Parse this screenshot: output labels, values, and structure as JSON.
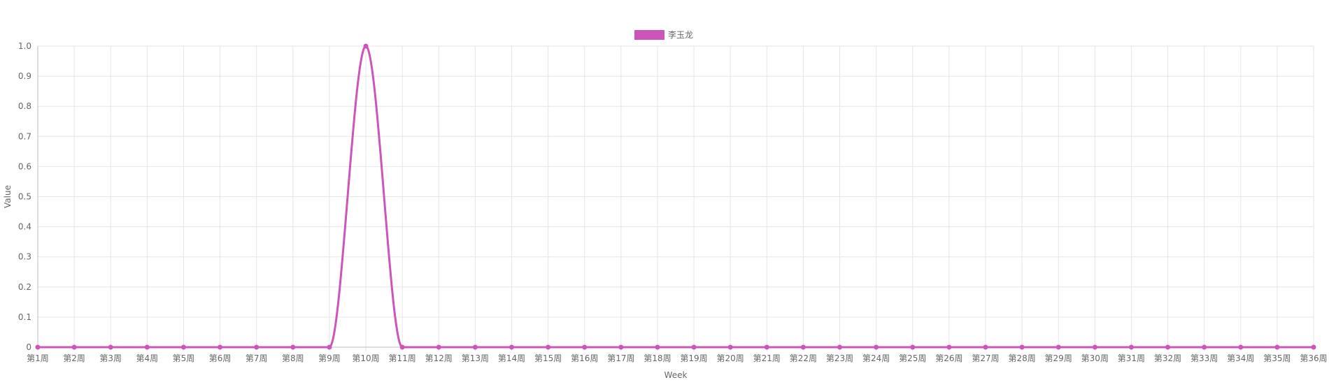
{
  "chart_data": {
    "type": "line",
    "xlabel": "Week",
    "ylabel": "Value",
    "ylim": [
      0,
      1
    ],
    "y_ticks": [
      "0",
      "0.1",
      "0.2",
      "0.3",
      "0.4",
      "0.5",
      "0.6",
      "0.7",
      "0.8",
      "0.9",
      "1.0"
    ],
    "grid": true,
    "legend_position": "top-center",
    "categories": [
      "第1周",
      "第2周",
      "第3周",
      "第4周",
      "第5周",
      "第6周",
      "第7周",
      "第8周",
      "第9周",
      "第10周",
      "第11周",
      "第12周",
      "第13周",
      "第14周",
      "第15周",
      "第16周",
      "第17周",
      "第18周",
      "第19周",
      "第20周",
      "第21周",
      "第22周",
      "第23周",
      "第24周",
      "第25周",
      "第26周",
      "第27周",
      "第28周",
      "第29周",
      "第30周",
      "第31周",
      "第32周",
      "第33周",
      "第34周",
      "第35周",
      "第36周"
    ],
    "series": [
      {
        "name": "李玉龙",
        "color": "#cc55bb",
        "values": [
          0,
          0,
          0,
          0,
          0,
          0,
          0,
          0,
          0,
          1,
          0,
          0,
          0,
          0,
          0,
          0,
          0,
          0,
          0,
          0,
          0,
          0,
          0,
          0,
          0,
          0,
          0,
          0,
          0,
          0,
          0,
          0,
          0,
          0,
          0,
          0
        ]
      }
    ]
  }
}
